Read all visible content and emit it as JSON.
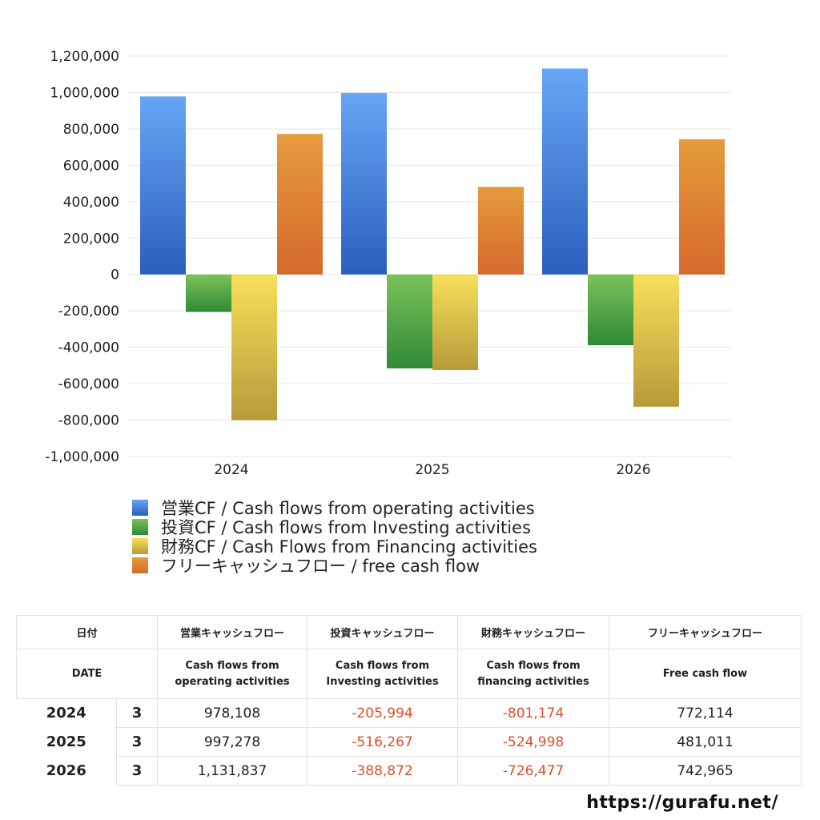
{
  "chart_data": {
    "type": "bar",
    "categories": [
      "2024",
      "2025",
      "2026"
    ],
    "ylim": [
      -1000000,
      1200000
    ],
    "yticks": [
      1200000,
      1000000,
      800000,
      600000,
      400000,
      200000,
      0,
      -200000,
      -400000,
      -600000,
      -800000,
      -1000000
    ],
    "grid": true,
    "legend_position": "bottom",
    "series": [
      {
        "name": "営業CF / Cash flows from operating activities",
        "color": "#3a78d8",
        "values": [
          978108,
          997278,
          1131837
        ]
      },
      {
        "name": "投資CF / Cash flows from Investing activities",
        "color": "#4da141",
        "values": [
          -205994,
          -516267,
          -388872
        ]
      },
      {
        "name": "財務CF / Cash Flows from Financing activities",
        "color": "#e2c43c",
        "values": [
          -801174,
          -524998,
          -726477
        ]
      },
      {
        "name": "フリーキャッシュフロー / free cash flow",
        "color": "#e0832f",
        "values": [
          772114,
          481011,
          742965
        ]
      }
    ]
  },
  "table": {
    "headers_jp": [
      "日付",
      "営業キャッシュフロー",
      "投資キャッシュフロー",
      "財務キャッシュフロー",
      "フリーキャッシュフロー"
    ],
    "headers_en": [
      "DATE",
      "Cash flows from operating activities",
      "Cash flows from Investing activities",
      "Cash flows from financing activities",
      "Free cash flow"
    ],
    "rows": [
      {
        "year": "2024",
        "month": "3",
        "operating": "978,108",
        "investing": "-205,994",
        "financing": "-801,174",
        "free": "772,114"
      },
      {
        "year": "2025",
        "month": "3",
        "operating": "997,278",
        "investing": "-516,267",
        "financing": "-524,998",
        "free": "481,011"
      },
      {
        "year": "2026",
        "month": "3",
        "operating": "1,131,837",
        "investing": "-388,872",
        "financing": "-726,477",
        "free": "742,965"
      }
    ]
  },
  "footer": {
    "url": "https://gurafu.net/"
  }
}
